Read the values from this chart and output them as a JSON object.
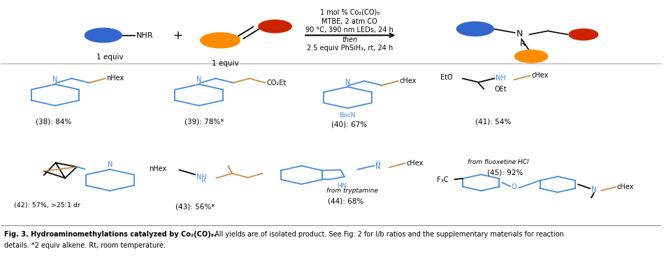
{
  "reaction_conditions_line1": "1 mol % Co₂(CO)₈",
  "reaction_conditions_line2": "MTBE, 2 atm CO",
  "reaction_conditions_line3": "90 °C, 390 nm LEDs, 24 h",
  "reaction_then": "then",
  "reaction_conditions_line4": "2.5 equiv PhSiH₃, rt, 24 h",
  "reagent1_label": "1 equiv",
  "reagent2_label": "1 equiv",
  "blue_color": "#3366CC",
  "orange_color": "#FF8C00",
  "red_color": "#CC2200",
  "bg_color": "#FFFFFF",
  "line_color": "#000000",
  "struct_blue": "#4488DD",
  "caption_bold": "Fig. 3. Hydroaminomethylations catalyzed by Co₂(CO)₈.",
  "caption_rest": " All yields are of isolated product. See Fig. 2 for l/b ratios and the supplementary materials for reaction",
  "caption_line2": "details. *2 equiv alkene. Rt, room temperature.",
  "figsize": [
    9.5,
    3.67
  ],
  "dpi": 100
}
